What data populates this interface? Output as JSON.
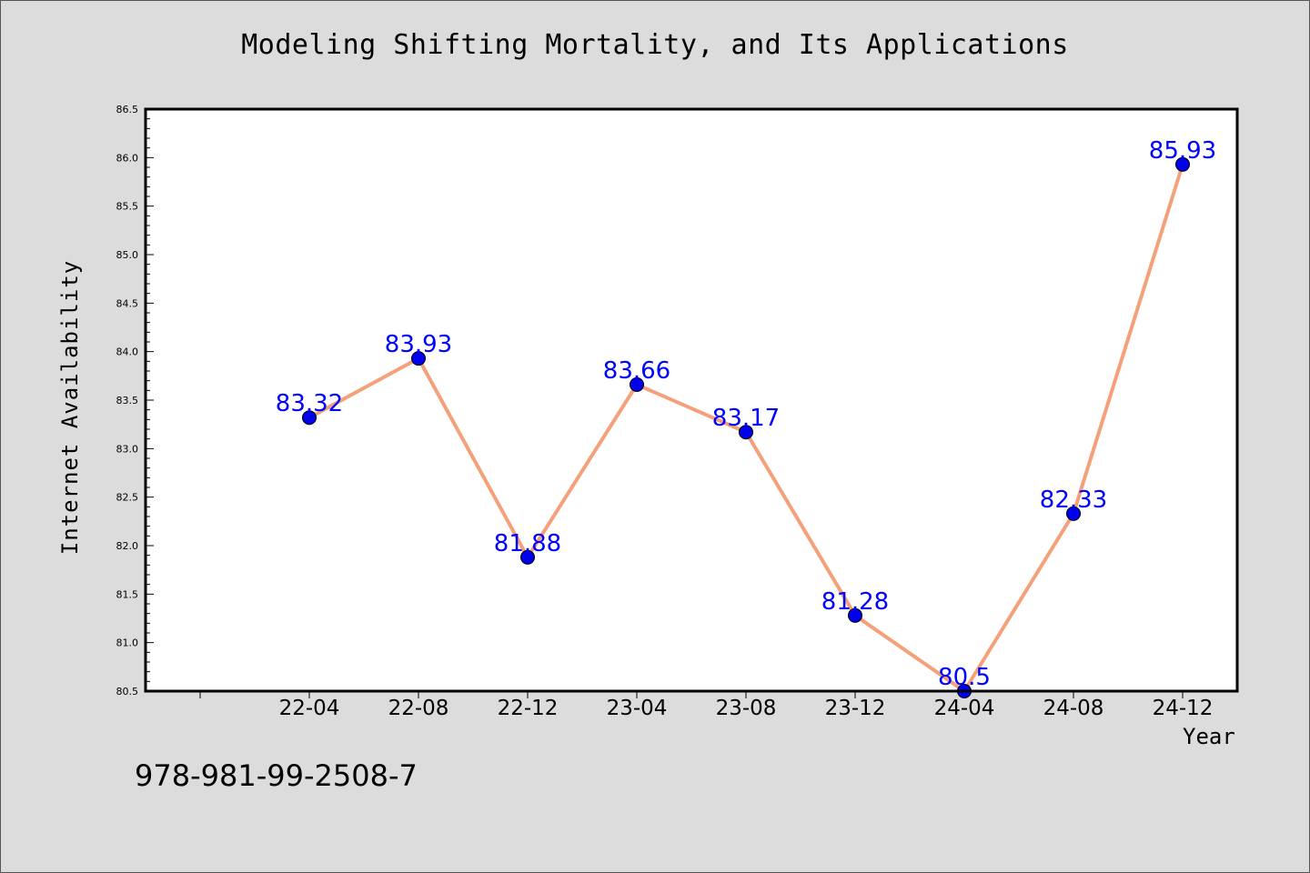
{
  "chart_data": {
    "type": "line",
    "title": "Modeling Shifting Mortality, and Its Applications",
    "xlabel": "Year",
    "ylabel": "Internet Availability",
    "categories": [
      "22-04",
      "22-08",
      "22-12",
      "23-04",
      "23-08",
      "23-12",
      "24-04",
      "24-08",
      "24-12"
    ],
    "series": [
      {
        "values": [
          83.32,
          83.93,
          81.88,
          83.66,
          83.17,
          81.28,
          80.5,
          82.33,
          85.93
        ],
        "labels": [
          "83.32",
          "83.93",
          "81.88",
          "83.66",
          "83.17",
          "81.28",
          "80.5",
          "82.33",
          "85.93"
        ]
      }
    ],
    "ylim": [
      80.5,
      86.5
    ],
    "yticks": [
      "80.5",
      "81.0",
      "81.5",
      "82.0",
      "82.5",
      "83.0",
      "83.5",
      "84.0",
      "84.5",
      "85.0",
      "85.5",
      "86.0",
      "86.5"
    ],
    "grid": false,
    "line_color": "#f4a07a",
    "marker_color": "#0000ee",
    "label_color": "#0000ff"
  },
  "footer": {
    "isbn": "978-981-99-2508-7"
  }
}
